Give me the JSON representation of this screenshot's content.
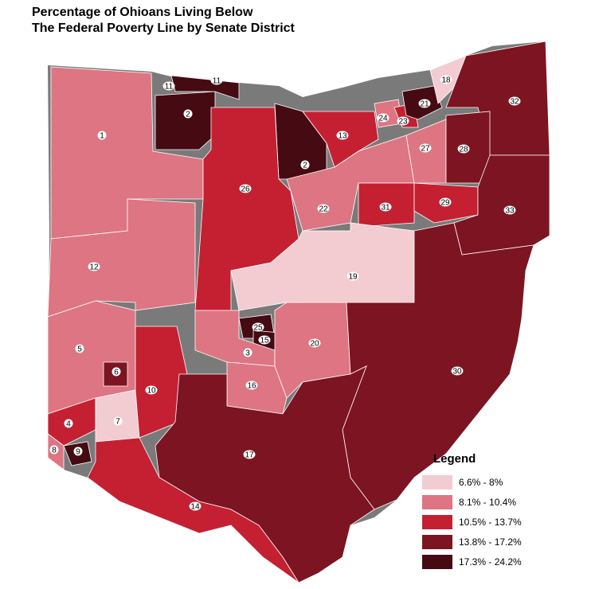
{
  "title_line1": "Percentage of Ohioans Living Below",
  "title_line2": "The Federal Poverty Line by Senate District",
  "legend": {
    "title": "Legend",
    "items": [
      {
        "label": "6.6% - 8%",
        "color": "#f2ccd1"
      },
      {
        "label": "8.1% - 10.4%",
        "color": "#de7582"
      },
      {
        "label": "10.5% - 13.7%",
        "color": "#c42032"
      },
      {
        "label": "13.8% - 17.2%",
        "color": "#7d1421"
      },
      {
        "label": "17.3% - 24.2%",
        "color": "#450a12"
      }
    ]
  },
  "districts": [
    {
      "id": "1",
      "class": 1
    },
    {
      "id": "2",
      "class": 4
    },
    {
      "id": "3",
      "class": 1
    },
    {
      "id": "4",
      "class": 2
    },
    {
      "id": "5",
      "class": 1
    },
    {
      "id": "6",
      "class": 3
    },
    {
      "id": "7",
      "class": 0
    },
    {
      "id": "8",
      "class": 1
    },
    {
      "id": "9",
      "class": 4
    },
    {
      "id": "10",
      "class": 2
    },
    {
      "id": "11",
      "class": 4
    },
    {
      "id": "12",
      "class": 1
    },
    {
      "id": "13",
      "class": 2
    },
    {
      "id": "14",
      "class": 2
    },
    {
      "id": "15",
      "class": 4
    },
    {
      "id": "16",
      "class": 1
    },
    {
      "id": "17",
      "class": 3
    },
    {
      "id": "18",
      "class": 0
    },
    {
      "id": "19",
      "class": 0
    },
    {
      "id": "20",
      "class": 1
    },
    {
      "id": "21",
      "class": 4
    },
    {
      "id": "22",
      "class": 1
    },
    {
      "id": "23",
      "class": 2
    },
    {
      "id": "24",
      "class": 1
    },
    {
      "id": "25",
      "class": 4
    },
    {
      "id": "26",
      "class": 2
    },
    {
      "id": "27",
      "class": 1
    },
    {
      "id": "28",
      "class": 3
    },
    {
      "id": "29",
      "class": 2
    },
    {
      "id": "30",
      "class": 3
    },
    {
      "id": "31",
      "class": 2
    },
    {
      "id": "32",
      "class": 3
    },
    {
      "id": "33",
      "class": 3
    }
  ]
}
